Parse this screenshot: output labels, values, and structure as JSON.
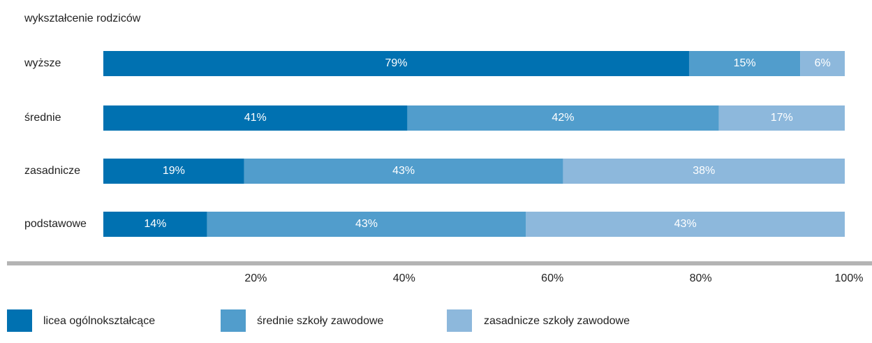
{
  "chart_data": {
    "type": "stacked-bar-horizontal",
    "title": "wykształcenie rodziców",
    "categories": [
      "wyższe",
      "średnie",
      "zasadnicze",
      "podstawowe"
    ],
    "series": [
      {
        "name": "licea ogólnokształcące",
        "color": "#0071b1",
        "values": [
          79,
          41,
          19,
          14
        ],
        "value_labels": [
          "79%",
          "41%",
          "19%",
          "14%"
        ]
      },
      {
        "name": "średnie szkoły zawodowe",
        "color": "#519dcc",
        "values": [
          15,
          42,
          43,
          43
        ],
        "value_labels": [
          "15%",
          "42%",
          "43%",
          "43%"
        ]
      },
      {
        "name": "zasadnicze szkoły zawodowe",
        "color": "#8db8dc",
        "values": [
          6,
          17,
          38,
          43
        ],
        "value_labels": [
          "6%",
          "17%",
          "38%",
          "43%"
        ]
      }
    ],
    "xlim": [
      0,
      100
    ],
    "xticks": [
      {
        "value": 20,
        "label": "20%"
      },
      {
        "value": 40,
        "label": "40%"
      },
      {
        "value": 60,
        "label": "60%"
      },
      {
        "value": 80,
        "label": "80%"
      },
      {
        "value": 100,
        "label": "100%"
      }
    ],
    "grid": false,
    "legend": "bottom"
  }
}
